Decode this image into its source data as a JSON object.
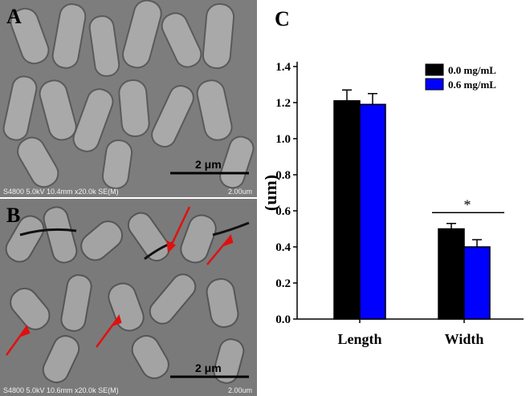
{
  "panel_a": {
    "letter": "A",
    "scale_label": "2 μm",
    "info_left": "S4800 5.0kV 10.4mm x20.0k SE(M)",
    "info_right": "2.00um"
  },
  "panel_b": {
    "letter": "B",
    "scale_label": "2 μm",
    "info_left": "S4800 5.0kV 10.6mm x20.0k SE(M)",
    "info_right": "2.00um"
  },
  "chart_letter": "C",
  "chart_data": {
    "type": "bar",
    "categories": [
      "Length",
      "Width"
    ],
    "series": [
      {
        "name": "0.0 mg/mL",
        "color": "#000000",
        "values": [
          1.21,
          0.5
        ],
        "errors": [
          0.06,
          0.03
        ]
      },
      {
        "name": "0.6 mg/mL",
        "color": "#0000ff",
        "values": [
          1.19,
          0.4
        ],
        "errors": [
          0.06,
          0.04
        ]
      }
    ],
    "xlabel": "",
    "ylabel": "(um)",
    "ylim": [
      0,
      1.4
    ],
    "yticks": [
      "0.0",
      "0.2",
      "0.4",
      "0.6",
      "0.8",
      "1.0",
      "1.2",
      "1.4"
    ],
    "legend_position": "top-right",
    "annotations": [
      {
        "text": "*",
        "category": "Width",
        "y": 0.59
      }
    ],
    "grid": false
  }
}
